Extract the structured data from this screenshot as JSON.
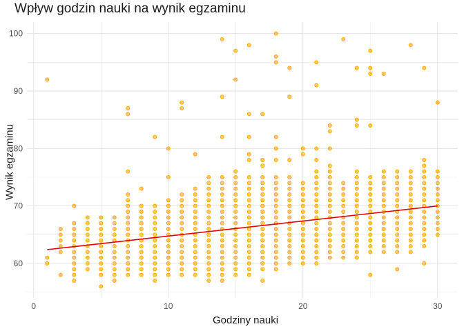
{
  "chart_data": {
    "type": "scatter",
    "title": "Wpływ godzin nauki na wynik egzaminu",
    "xlabel": "Godziny nauki",
    "ylabel": "Wynik egzaminu",
    "xlim": [
      -0.5,
      31.5
    ],
    "ylim": [
      54,
      102
    ],
    "x_ticks": [
      0,
      10,
      20,
      30
    ],
    "y_ticks": [
      60,
      70,
      80,
      90,
      100
    ],
    "grid": true,
    "point_color": "#FFA500",
    "trend_color": "#E00000",
    "trend_line": {
      "x": [
        1,
        30
      ],
      "y": [
        62.4,
        70.0
      ]
    },
    "point_columns": [
      {
        "x": 1,
        "y_min": 60,
        "y_max": 61
      },
      {
        "x": 2,
        "y_min": 62,
        "y_max": 66
      },
      {
        "x": 3,
        "y_min": 58,
        "y_max": 67
      },
      {
        "x": 4,
        "y_min": 59,
        "y_max": 68
      },
      {
        "x": 5,
        "y_min": 58,
        "y_max": 68
      },
      {
        "x": 6,
        "y_min": 58,
        "y_max": 68
      },
      {
        "x": 7,
        "y_min": 58,
        "y_max": 72
      },
      {
        "x": 8,
        "y_min": 58,
        "y_max": 70
      },
      {
        "x": 9,
        "y_min": 57,
        "y_max": 70
      },
      {
        "x": 10,
        "y_min": 58,
        "y_max": 71
      },
      {
        "x": 11,
        "y_min": 58,
        "y_max": 72
      },
      {
        "x": 12,
        "y_min": 58,
        "y_max": 73
      },
      {
        "x": 13,
        "y_min": 57,
        "y_max": 75
      },
      {
        "x": 14,
        "y_min": 57,
        "y_max": 75
      },
      {
        "x": 15,
        "y_min": 58,
        "y_max": 76
      },
      {
        "x": 16,
        "y_min": 58,
        "y_max": 75
      },
      {
        "x": 17,
        "y_min": 59,
        "y_max": 75
      },
      {
        "x": 18,
        "y_min": 59,
        "y_max": 75
      },
      {
        "x": 19,
        "y_min": 60,
        "y_max": 75
      },
      {
        "x": 20,
        "y_min": 60,
        "y_max": 74
      },
      {
        "x": 21,
        "y_min": 60,
        "y_max": 76
      },
      {
        "x": 22,
        "y_min": 61,
        "y_max": 77
      },
      {
        "x": 23,
        "y_min": 61,
        "y_max": 74
      },
      {
        "x": 24,
        "y_min": 61,
        "y_max": 76
      },
      {
        "x": 25,
        "y_min": 62,
        "y_max": 75
      },
      {
        "x": 26,
        "y_min": 62,
        "y_max": 76
      },
      {
        "x": 27,
        "y_min": 62,
        "y_max": 76
      },
      {
        "x": 28,
        "y_min": 62,
        "y_max": 76
      },
      {
        "x": 29,
        "y_min": 63,
        "y_max": 78
      },
      {
        "x": 30,
        "y_min": 65,
        "y_max": 76
      }
    ],
    "outliers": [
      [
        1,
        92
      ],
      [
        2,
        58
      ],
      [
        3,
        70
      ],
      [
        3,
        57
      ],
      [
        5,
        56
      ],
      [
        6,
        57
      ],
      [
        7,
        87
      ],
      [
        7,
        86
      ],
      [
        7,
        76
      ],
      [
        8,
        73
      ],
      [
        9,
        82
      ],
      [
        10,
        80
      ],
      [
        10,
        75
      ],
      [
        11,
        88
      ],
      [
        11,
        87
      ],
      [
        12,
        79
      ],
      [
        14,
        99
      ],
      [
        14,
        89
      ],
      [
        14,
        82
      ],
      [
        15,
        97
      ],
      [
        15,
        92
      ],
      [
        16,
        98
      ],
      [
        16,
        86
      ],
      [
        16,
        82
      ],
      [
        16,
        79
      ],
      [
        16,
        78
      ],
      [
        17,
        86
      ],
      [
        17,
        78
      ],
      [
        17,
        77
      ],
      [
        17,
        57
      ],
      [
        18,
        100
      ],
      [
        18,
        96
      ],
      [
        18,
        95
      ],
      [
        18,
        82
      ],
      [
        18,
        80
      ],
      [
        18,
        78
      ],
      [
        19,
        94
      ],
      [
        19,
        89
      ],
      [
        19,
        78
      ],
      [
        20,
        80
      ],
      [
        20,
        79
      ],
      [
        21,
        95
      ],
      [
        21,
        91
      ],
      [
        21,
        80
      ],
      [
        21,
        78
      ],
      [
        22,
        84
      ],
      [
        22,
        83
      ],
      [
        22,
        80
      ],
      [
        23,
        99
      ],
      [
        24,
        94
      ],
      [
        24,
        85
      ],
      [
        24,
        84
      ],
      [
        25,
        97
      ],
      [
        25,
        94
      ],
      [
        25,
        93
      ],
      [
        25,
        84
      ],
      [
        25,
        58
      ],
      [
        26,
        93
      ],
      [
        27,
        59
      ],
      [
        28,
        98
      ],
      [
        29,
        94
      ],
      [
        29,
        60
      ],
      [
        30,
        88
      ]
    ]
  }
}
